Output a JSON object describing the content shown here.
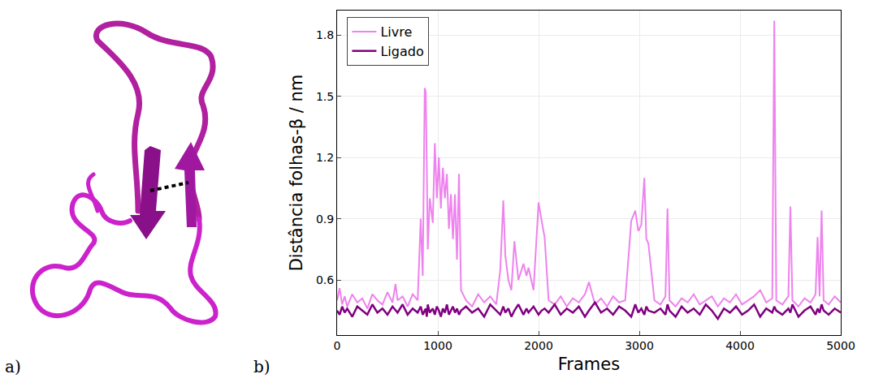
{
  "panel_labels": [
    "a)",
    "b)"
  ],
  "chart_data": {
    "type": "line",
    "x_label": "Frames",
    "y_label": "Distância folhas-β / nm",
    "x": [
      0,
      25,
      50,
      75,
      100,
      150,
      200,
      250,
      300,
      350,
      400,
      450,
      500,
      550,
      580,
      600,
      650,
      700,
      750,
      800,
      830,
      850,
      870,
      880,
      890,
      900,
      920,
      950,
      970,
      990,
      1010,
      1030,
      1050,
      1070,
      1090,
      1110,
      1130,
      1150,
      1170,
      1190,
      1210,
      1230,
      1280,
      1340,
      1400,
      1460,
      1520,
      1580,
      1620,
      1650,
      1670,
      1700,
      1730,
      1760,
      1800,
      1850,
      1880,
      1900,
      1950,
      2000,
      2030,
      2060,
      2100,
      2160,
      2220,
      2280,
      2340,
      2400,
      2460,
      2500,
      2560,
      2620,
      2680,
      2740,
      2800,
      2860,
      2920,
      2960,
      2990,
      3020,
      3050,
      3070,
      3090,
      3150,
      3210,
      3260,
      3280,
      3300,
      3360,
      3420,
      3480,
      3540,
      3600,
      3660,
      3720,
      3780,
      3840,
      3900,
      3960,
      4020,
      4080,
      4140,
      4200,
      4260,
      4320,
      4340,
      4360,
      4420,
      4480,
      4500,
      4520,
      4580,
      4640,
      4700,
      4750,
      4770,
      4790,
      4810,
      4830,
      4880,
      4940,
      5000
    ],
    "series": [
      {
        "name": "Livre",
        "color": "#ee82ee",
        "values": [
          0.5,
          0.56,
          0.48,
          0.52,
          0.47,
          0.53,
          0.49,
          0.51,
          0.46,
          0.53,
          0.5,
          0.48,
          0.54,
          0.49,
          0.58,
          0.5,
          0.52,
          0.47,
          0.53,
          0.5,
          0.9,
          0.62,
          1.54,
          1.52,
          1.17,
          0.75,
          1.0,
          0.88,
          1.27,
          1.0,
          1.2,
          0.95,
          1.15,
          1.0,
          1.12,
          0.85,
          1.02,
          0.8,
          1.02,
          0.7,
          1.12,
          0.55,
          0.5,
          0.47,
          0.53,
          0.49,
          0.52,
          0.48,
          0.65,
          0.99,
          0.72,
          0.6,
          0.55,
          0.79,
          0.6,
          0.68,
          0.62,
          0.66,
          0.55,
          0.98,
          0.89,
          0.81,
          0.5,
          0.48,
          0.52,
          0.47,
          0.51,
          0.49,
          0.53,
          0.59,
          0.48,
          0.51,
          0.47,
          0.52,
          0.49,
          0.5,
          0.89,
          0.94,
          0.84,
          0.87,
          1.1,
          0.8,
          0.78,
          0.5,
          0.48,
          0.52,
          0.95,
          0.5,
          0.47,
          0.51,
          0.49,
          0.53,
          0.48,
          0.5,
          0.52,
          0.47,
          0.51,
          0.49,
          0.53,
          0.48,
          0.5,
          0.52,
          0.55,
          0.49,
          0.51,
          1.87,
          0.5,
          0.48,
          0.52,
          0.96,
          0.5,
          0.47,
          0.51,
          0.49,
          0.53,
          0.81,
          0.52,
          0.94,
          0.5,
          0.48,
          0.52,
          0.49
        ]
      },
      {
        "name": "Ligado",
        "color": "#800080",
        "values": [
          0.45,
          0.43,
          0.47,
          0.44,
          0.46,
          0.42,
          0.47,
          0.45,
          0.43,
          0.48,
          0.44,
          0.46,
          0.43,
          0.47,
          0.45,
          0.44,
          0.48,
          0.43,
          0.46,
          0.44,
          0.47,
          0.43,
          0.45,
          0.46,
          0.42,
          0.48,
          0.44,
          0.46,
          0.43,
          0.47,
          0.45,
          0.42,
          0.46,
          0.44,
          0.48,
          0.43,
          0.45,
          0.47,
          0.44,
          0.46,
          0.43,
          0.45,
          0.47,
          0.44,
          0.46,
          0.42,
          0.48,
          0.45,
          0.43,
          0.47,
          0.44,
          0.46,
          0.42,
          0.45,
          0.48,
          0.43,
          0.46,
          0.44,
          0.47,
          0.43,
          0.45,
          0.46,
          0.44,
          0.48,
          0.43,
          0.46,
          0.44,
          0.47,
          0.42,
          0.45,
          0.49,
          0.44,
          0.46,
          0.43,
          0.47,
          0.45,
          0.42,
          0.48,
          0.44,
          0.46,
          0.43,
          0.47,
          0.45,
          0.44,
          0.46,
          0.43,
          0.48,
          0.45,
          0.42,
          0.47,
          0.44,
          0.46,
          0.43,
          0.48,
          0.45,
          0.41,
          0.46,
          0.44,
          0.47,
          0.43,
          0.45,
          0.48,
          0.42,
          0.46,
          0.44,
          0.47,
          0.45,
          0.43,
          0.46,
          0.44,
          0.48,
          0.42,
          0.45,
          0.47,
          0.43,
          0.46,
          0.44,
          0.48,
          0.45,
          0.43,
          0.46,
          0.44
        ]
      }
    ],
    "xlim": [
      0,
      5000
    ],
    "xticks": [
      0,
      1000,
      2000,
      3000,
      4000,
      5000
    ],
    "ylim": [
      0.33,
      1.92
    ],
    "yticks": [
      0.6,
      0.9,
      1.2,
      1.5,
      1.8
    ],
    "grid": true,
    "legend": "top-left"
  }
}
